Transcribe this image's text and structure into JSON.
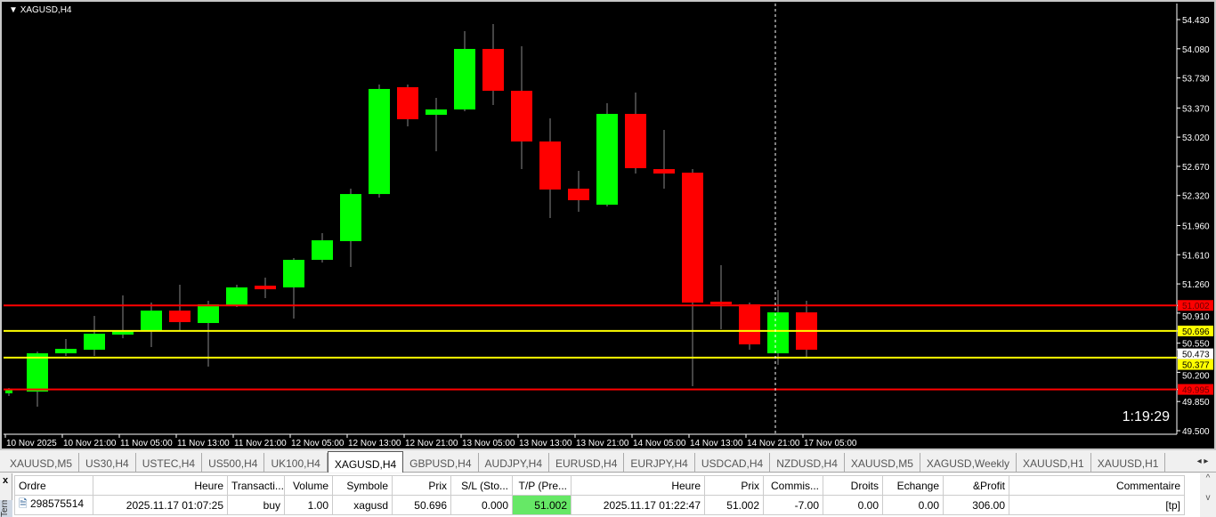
{
  "chart": {
    "symbol_title": "XAGUSD,H4",
    "timer": "1:19:29",
    "colors": {
      "bull": "#00ff00",
      "bear": "#ff0000",
      "background": "#000000",
      "level_red": "#ff0000",
      "level_yellow": "#ffff00",
      "axis": "#ffffff"
    },
    "price_ticks": [
      "54.430",
      "54.080",
      "53.730",
      "53.370",
      "53.020",
      "52.670",
      "52.320",
      "51.960",
      "51.610",
      "51.260",
      "50.910",
      "50.550",
      "50.200",
      "49.850",
      "49.500"
    ],
    "price_range": [
      49.5,
      54.43
    ],
    "time_labels": [
      "10 Nov 2025",
      "10 Nov 21:00",
      "11 Nov 05:00",
      "11 Nov 13:00",
      "11 Nov 21:00",
      "12 Nov 05:00",
      "12 Nov 13:00",
      "12 Nov 21:00",
      "13 Nov 05:00",
      "13 Nov 13:00",
      "13 Nov 21:00",
      "14 Nov 05:00",
      "14 Nov 13:00",
      "14 Nov 21:00",
      "17 Nov 05:00"
    ],
    "levels": [
      {
        "price": "51.002",
        "color": "red"
      },
      {
        "price": "50.696",
        "color": "yellow"
      },
      {
        "price": "50.377",
        "color": "yellow"
      },
      {
        "price": "49.995",
        "color": "red"
      }
    ],
    "current_price": "50.473",
    "candles": [
      [
        49.948,
        50.012,
        49.916,
        49.99
      ],
      [
        49.969,
        50.449,
        49.788,
        50.428
      ],
      [
        50.428,
        50.599,
        50.396,
        50.481
      ],
      [
        50.471,
        50.876,
        50.396,
        50.663
      ],
      [
        50.652,
        51.122,
        50.609,
        50.705
      ],
      [
        50.695,
        51.036,
        50.503,
        50.94
      ],
      [
        50.94,
        51.25,
        50.695,
        50.802
      ],
      [
        50.791,
        51.058,
        50.268,
        51.015
      ],
      [
        51.004,
        51.25,
        50.983,
        51.218
      ],
      [
        51.239,
        51.335,
        51.09,
        51.196
      ],
      [
        51.218,
        51.57,
        50.844,
        51.549
      ],
      [
        51.549,
        51.869,
        51.517,
        51.783
      ],
      [
        51.773,
        52.402,
        51.463,
        52.338
      ],
      [
        52.338,
        53.651,
        52.296,
        53.598
      ],
      [
        53.619,
        53.651,
        53.149,
        53.235
      ],
      [
        53.288,
        53.491,
        52.851,
        53.352
      ],
      [
        53.352,
        54.291,
        53.331,
        54.078
      ],
      [
        54.078,
        54.377,
        53.405,
        53.576
      ],
      [
        53.576,
        54.11,
        52.637,
        52.968
      ],
      [
        52.968,
        53.245,
        52.05,
        52.392
      ],
      [
        52.402,
        52.616,
        52.125,
        52.264
      ],
      [
        52.21,
        53.427,
        52.189,
        53.299
      ],
      [
        53.299,
        53.555,
        52.584,
        52.648
      ],
      [
        52.637,
        53.107,
        52.402,
        52.584
      ],
      [
        52.594,
        52.637,
        50.033,
        51.036
      ],
      [
        51.047,
        51.485,
        50.716,
        51.015
      ],
      [
        51.015,
        51.036,
        50.471,
        50.535
      ],
      [
        50.428,
        51.186,
        50.289,
        50.919
      ],
      [
        50.919,
        51.058,
        50.364,
        50.471
      ]
    ]
  },
  "tabs": [
    "XAUUSD,M5",
    "US30,H4",
    "USTEC,H4",
    "US500,H4",
    "UK100,H4",
    "XAGUSD,H4",
    "GBPUSD,H4",
    "AUDJPY,H4",
    "EURUSD,H4",
    "EURJPY,H4",
    "USDCAD,H4",
    "NZDUSD,H4",
    "XAUUSD,M5",
    "XAGUSD,Weekly",
    "XAUUSD,H1",
    "XAUUSD,H1"
  ],
  "active_tab": "XAGUSD,H4",
  "terminal": {
    "side_label": "Terminal",
    "close": "x",
    "columns": [
      "Ordre",
      "Heure",
      "Transacti...",
      "Volume",
      "Symbole",
      "Prix",
      "S/L (Sto...",
      "T/P (Pre...",
      "Heure",
      "Prix",
      "Commis...",
      "Droits",
      "Echange",
      "&Profit",
      "Commentaire"
    ],
    "rows": [
      [
        "298575514",
        "2025.11.17 01:07:25",
        "buy",
        "1.00",
        "xagusd",
        "50.696",
        "0.000",
        "51.002",
        "2025.11.17 01:22:47",
        "51.002",
        "-7.00",
        "0.00",
        "0.00",
        "306.00",
        "[tp]"
      ]
    ]
  }
}
